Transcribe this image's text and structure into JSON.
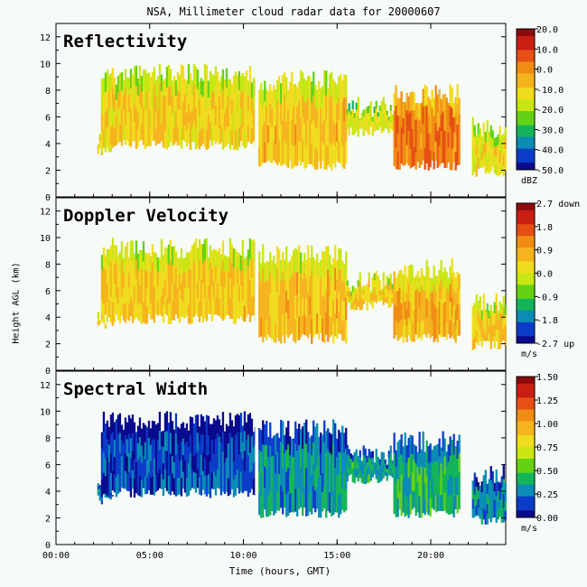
{
  "figure": {
    "title": "NSA, Millimeter cloud radar data for 20000607",
    "ylabel": "Height AGL (km)",
    "xlabel": "Time (hours, GMT)"
  },
  "colors": {
    "background": "#f7fbf7",
    "colormap": [
      "#0a0a8c",
      "#0a3cc8",
      "#0a8cb4",
      "#14b45a",
      "#64d214",
      "#c8e614",
      "#f0dc1e",
      "#f5b41e",
      "#f08c14",
      "#e65014",
      "#c81e14",
      "#8c0a0a"
    ]
  },
  "chart_data": [
    {
      "type": "heatmap",
      "title": "Reflectivity",
      "x": {
        "range": [
          0,
          24
        ],
        "tick_labels": [
          "00:00",
          "05:00",
          "10:00",
          "15:00",
          "20:00"
        ],
        "tick_values": [
          0,
          5,
          10,
          15,
          20
        ]
      },
      "y": {
        "range": [
          0,
          13
        ],
        "tick_labels": [
          "0",
          "2",
          "4",
          "6",
          "8",
          "10",
          "12"
        ],
        "tick_values": [
          0,
          2,
          4,
          6,
          8,
          10,
          12
        ]
      },
      "colorbar": {
        "unit": "dBZ",
        "labels": [
          "20.0",
          "10.0",
          "0.0",
          "-10.0",
          "-20.0",
          "-30.0",
          "-40.0",
          "-50.0"
        ],
        "range": [
          -50,
          20
        ]
      },
      "cloud_layers": [
        {
          "t_start": 2.2,
          "t_end": 3.0,
          "base_km": 3.0,
          "top_km": 5.0,
          "value": -12
        },
        {
          "t_start": 2.4,
          "t_end": 10.6,
          "base_km": 3.5,
          "top_km": 10.0,
          "value": -10
        },
        {
          "t_start": 10.8,
          "t_end": 15.5,
          "base_km": 2.0,
          "top_km": 9.5,
          "value": -8
        },
        {
          "t_start": 15.5,
          "t_end": 18.5,
          "base_km": 4.5,
          "top_km": 7.5,
          "value": -15
        },
        {
          "t_start": 18.0,
          "t_end": 21.5,
          "base_km": 2.0,
          "top_km": 8.5,
          "value": 3
        },
        {
          "t_start": 22.2,
          "t_end": 24.0,
          "base_km": 1.5,
          "top_km": 6.0,
          "value": -12
        }
      ]
    },
    {
      "type": "heatmap",
      "title": "Doppler Velocity",
      "x": {
        "range": [
          0,
          24
        ],
        "tick_labels": [
          "00:00",
          "05:00",
          "10:00",
          "15:00",
          "20:00"
        ],
        "tick_values": [
          0,
          5,
          10,
          15,
          20
        ]
      },
      "y": {
        "range": [
          0,
          13
        ],
        "tick_labels": [
          "0",
          "2",
          "4",
          "6",
          "8",
          "10",
          "12"
        ],
        "tick_values": [
          0,
          2,
          4,
          6,
          8,
          10,
          12
        ]
      },
      "colorbar": {
        "unit": "m/s",
        "labels": [
          "2.7 down",
          "1.8",
          "0.9",
          "0.0",
          "-0.9",
          "-1.8",
          "-2.7 up"
        ],
        "range": [
          -2.7,
          2.7
        ]
      },
      "cloud_layers": [
        {
          "t_start": 2.2,
          "t_end": 3.0,
          "base_km": 3.0,
          "top_km": 5.0,
          "value": 0.4
        },
        {
          "t_start": 2.4,
          "t_end": 10.6,
          "base_km": 3.5,
          "top_km": 10.0,
          "value": 0.5
        },
        {
          "t_start": 10.8,
          "t_end": 15.5,
          "base_km": 2.0,
          "top_km": 9.5,
          "value": 0.6
        },
        {
          "t_start": 15.5,
          "t_end": 18.5,
          "base_km": 4.5,
          "top_km": 7.5,
          "value": 0.4
        },
        {
          "t_start": 18.0,
          "t_end": 21.5,
          "base_km": 2.0,
          "top_km": 8.5,
          "value": 0.7
        },
        {
          "t_start": 22.2,
          "t_end": 24.0,
          "base_km": 1.5,
          "top_km": 6.0,
          "value": 0.5
        }
      ]
    },
    {
      "type": "heatmap",
      "title": "Spectral Width",
      "x": {
        "range": [
          0,
          24
        ],
        "tick_labels": [
          "00:00",
          "05:00",
          "10:00",
          "15:00",
          "20:00"
        ],
        "tick_values": [
          0,
          5,
          10,
          15,
          20
        ]
      },
      "y": {
        "range": [
          0,
          13
        ],
        "tick_labels": [
          "0",
          "2",
          "4",
          "6",
          "8",
          "10",
          "12"
        ],
        "tick_values": [
          0,
          2,
          4,
          6,
          8,
          10,
          12
        ]
      },
      "colorbar": {
        "unit": "m/s",
        "labels": [
          "1.50",
          "1.25",
          "1.00",
          "0.75",
          "0.50",
          "0.25",
          "0.00"
        ],
        "range": [
          0,
          1.5
        ]
      },
      "cloud_layers": [
        {
          "t_start": 2.2,
          "t_end": 3.0,
          "base_km": 3.0,
          "top_km": 5.0,
          "value": 0.25
        },
        {
          "t_start": 2.4,
          "t_end": 10.6,
          "base_km": 3.5,
          "top_km": 10.0,
          "value": 0.15
        },
        {
          "t_start": 10.8,
          "t_end": 15.5,
          "base_km": 2.0,
          "top_km": 9.5,
          "value": 0.3
        },
        {
          "t_start": 15.5,
          "t_end": 18.5,
          "base_km": 4.5,
          "top_km": 7.5,
          "value": 0.35
        },
        {
          "t_start": 18.0,
          "t_end": 21.5,
          "base_km": 2.0,
          "top_km": 8.5,
          "value": 0.4
        },
        {
          "t_start": 22.2,
          "t_end": 24.0,
          "base_km": 1.5,
          "top_km": 6.0,
          "value": 0.3
        }
      ]
    }
  ]
}
